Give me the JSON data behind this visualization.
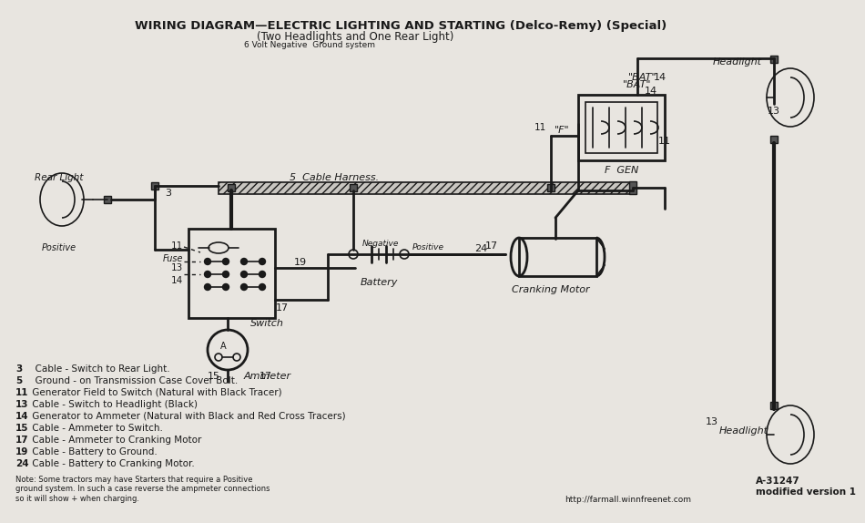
{
  "title_line1": "WIRING DIAGRAM—ELECTRIC LIGHTING AND STARTING (Delco-Remy) (Special)",
  "title_line2": "(Two Headlights and One Rear Light)",
  "title_line3": "6 Volt Negative  Ground system",
  "bg_color": "#e8e5e0",
  "line_color": "#1a1a1a",
  "legend_items": [
    "3  Cable - Switch to Rear Light.",
    "5  Ground - on Transmission Case Cover Bolt.",
    "11 Generator Field to Switch (Natural with Black Tracer)",
    "13 Cable - Switch to Headlight (Black)",
    "14 Generator to Ammeter (Natural with Black and Red Cross Tracers)",
    "15 Cable - Ammeter to Switch.",
    "17 Cable - Ammeter to Cranking Motor",
    "19 Cable - Battery to Ground.",
    "24 Cable - Battery to Cranking Motor."
  ],
  "note": "Note: Some tractors may have Starters that require a Positive\nground system. In such a case reverse the ampmeter connections\nso it will show + when charging.",
  "url": "http://farmall.winnfreenet.com",
  "part_number": "A-31247\nmodified version 1"
}
